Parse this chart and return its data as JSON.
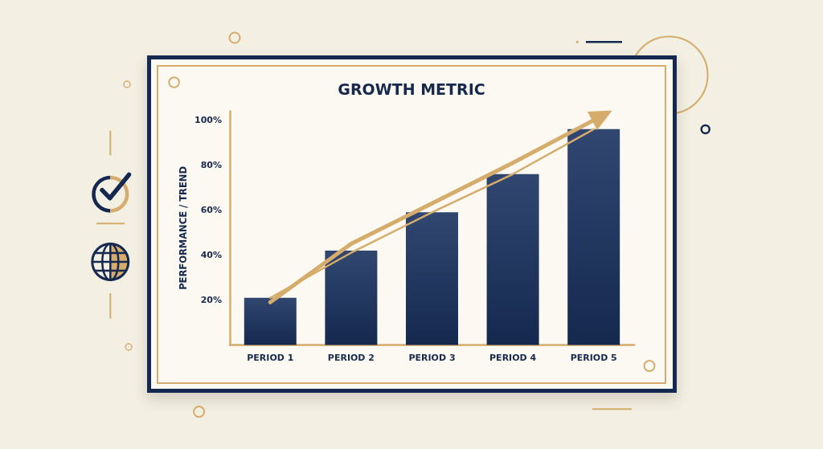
{
  "chart_data": {
    "type": "bar",
    "title": "GROWTH METRIC",
    "ylabel": "PERFORMANCE / TREND",
    "categories": [
      "PERIOD 1",
      "PERIOD 2",
      "PERIOD 3",
      "PERIOD 4",
      "PERIOD 5"
    ],
    "ylim": [
      0,
      104
    ],
    "yticks": [
      {
        "value": 20,
        "label": "20%"
      },
      {
        "value": 40,
        "label": "40%"
      },
      {
        "value": 60,
        "label": "60%"
      },
      {
        "value": 80,
        "label": "80%"
      },
      {
        "value": 100,
        "label": "100%"
      }
    ],
    "marker": "none",
    "series": [
      {
        "color": "#1a3260",
        "values": [
          21,
          42,
          59,
          76,
          96
        ]
      },
      {
        "type": "line",
        "color": "#d5ac6b",
        "values": [
          19,
          45,
          63,
          81,
          100
        ]
      },
      {
        "type": "line",
        "color": "#d5ac6b",
        "values": [
          21,
          41,
          59,
          76,
          96
        ]
      }
    ]
  }
}
